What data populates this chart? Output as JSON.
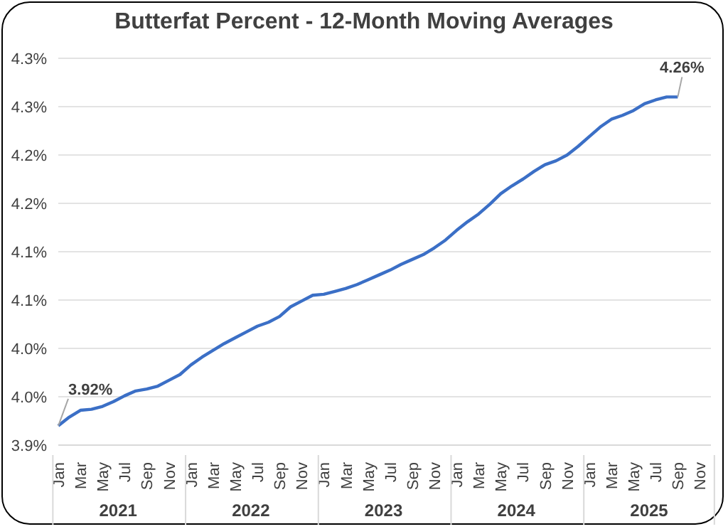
{
  "chart_data": {
    "type": "line",
    "title": "Butterfat Percent - 12-Month Moving Averages",
    "categories": [
      "Jan",
      null,
      "Mar",
      null,
      "May",
      null,
      "Jul",
      null,
      "Sep",
      null,
      "Nov",
      null,
      "Jan",
      null,
      "Mar",
      null,
      "May",
      null,
      "Jul",
      null,
      "Sep",
      null,
      "Nov",
      null,
      "Jan",
      null,
      "Mar",
      null,
      "May",
      null,
      "Jul",
      null,
      "Sep",
      null,
      "Nov",
      null,
      "Jan",
      null,
      "Mar",
      null,
      "May",
      null,
      "Jul",
      null,
      "Sep",
      null,
      "Nov",
      null,
      "Jan",
      null,
      "Mar",
      null,
      "May",
      null,
      "Jul",
      null,
      "Sep",
      null,
      "Nov",
      null
    ],
    "series": [
      {
        "color": "#3b6fc6",
        "values": [
          3.92,
          3.929,
          3.936,
          3.937,
          3.94,
          3.945,
          3.951,
          3.956,
          3.958,
          3.961,
          3.967,
          3.973,
          3.983,
          3.991,
          3.998,
          4.005,
          4.011,
          4.017,
          4.023,
          4.027,
          4.033,
          4.043,
          4.049,
          4.055,
          4.056,
          4.059,
          4.062,
          4.066,
          4.071,
          4.076,
          4.081,
          4.087,
          4.092,
          4.097,
          4.104,
          4.112,
          4.122,
          4.131,
          4.139,
          4.149,
          4.16,
          4.168,
          4.175,
          4.183,
          4.19,
          4.194,
          4.2,
          4.209,
          4.219,
          4.229,
          4.237,
          4.241,
          4.246,
          4.253,
          4.257,
          4.26,
          4.26,
          null,
          null,
          null
        ],
        "value_labels": [
          "3.92%",
          null,
          null,
          null,
          null,
          null,
          null,
          null,
          null,
          null,
          null,
          null,
          null,
          null,
          null,
          null,
          null,
          null,
          null,
          null,
          null,
          null,
          null,
          null,
          null,
          null,
          null,
          null,
          null,
          null,
          null,
          null,
          null,
          null,
          null,
          null,
          null,
          null,
          null,
          null,
          null,
          null,
          null,
          null,
          null,
          null,
          null,
          null,
          null,
          null,
          null,
          null,
          null,
          null,
          null,
          null,
          "4.26%",
          null,
          null,
          null
        ]
      }
    ],
    "ylim": [
      3.9,
      4.3
    ],
    "yticks": [
      {
        "value": 3.9,
        "label": "3.9%"
      },
      {
        "value": 3.95,
        "label": "4.0%"
      },
      {
        "value": 4.0,
        "label": "4.0%"
      },
      {
        "value": 4.05,
        "label": "4.1%"
      },
      {
        "value": 4.1,
        "label": "4.1%"
      },
      {
        "value": 4.15,
        "label": "4.2%"
      },
      {
        "value": 4.2,
        "label": "4.2%"
      },
      {
        "value": 4.25,
        "label": "4.3%"
      },
      {
        "value": 4.3,
        "label": "4.3%"
      }
    ],
    "annotations": [
      "2021",
      "2022",
      "2023",
      "2024",
      "2025"
    ],
    "grid": "y",
    "legend": false,
    "marker": "none",
    "line_style": "solid"
  }
}
